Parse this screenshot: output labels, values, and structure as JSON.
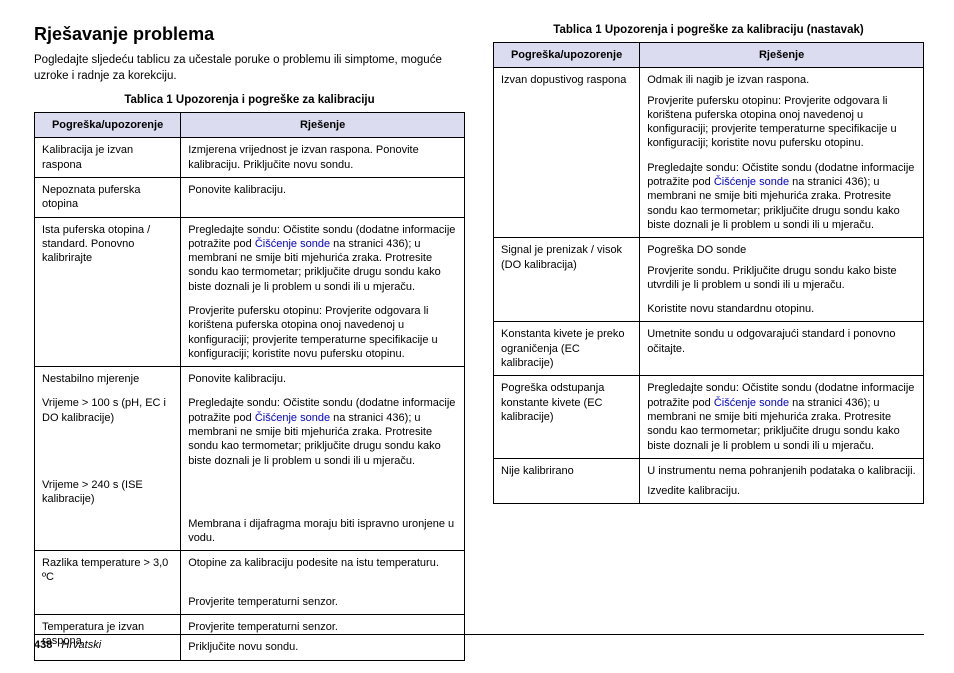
{
  "heading": "Rješavanje problema",
  "intro": "Pogledajte sljedeću tablicu za učestale poruke o problemu ili simptome, moguće uzroke i radnje za korekciju.",
  "table1": {
    "caption": "Tablica 1  Upozorenja i pogreške za kalibraciju",
    "headers": {
      "err": "Pogreška/upozorenje",
      "sol": "Rješenje"
    },
    "rows": [
      {
        "err": [
          "Kalibracija je izvan raspona"
        ],
        "sol": [
          "Izmjerena vrijednost je izvan raspona. Ponovite kalibraciju. Priključite novu sondu."
        ]
      },
      {
        "err": [
          "Nepoznata puferska otopina"
        ],
        "sol": [
          "Ponovite kalibraciju."
        ],
        "top": true
      },
      {
        "err": [
          "Ista puferska otopina / standard. Ponovno kalibrirajte"
        ],
        "sol": [
          "Pregledajte sondu: Očistite sondu (dodatne informacije potražite pod ",
          {
            "link": "Čišćenje sonde"
          },
          " na stranici 436); u membrani ne smije biti mjehurića zraka. Protresite sondu kao termometar; priključite drugu sondu kako biste doznali je li problem u sondi ili u mjeraču."
        ],
        "top": true
      },
      {
        "err": [],
        "sol": [
          "Provjerite pufersku otopinu: Provjerite odgovara li korištena puferska otopina onoj navedenoj u konfiguraciji; provjerite temperaturne specifikacije u konfiguraciji; koristite novu pufersku otopinu."
        ]
      },
      {
        "err": [
          "Nestabilno mjerenje"
        ],
        "sol": [
          "Ponovite kalibraciju."
        ],
        "top": true
      },
      {
        "err": [
          "Vrijeme > 100 s (pH, EC i DO kalibracije)"
        ],
        "sol": [
          "Pregledajte sondu: Očistite sondu (dodatne informacije potražite pod ",
          {
            "link": "Čišćenje sonde"
          },
          " na stranici 436); u membrani ne smije biti mjehurića zraka. Protresite sondu kao termometar; priključite drugu sondu kako biste doznali je li problem u sondi ili u mjeraču."
        ]
      },
      {
        "err": [
          "Vrijeme > 240 s (ISE kalibracije)"
        ],
        "sol": []
      },
      {
        "err": [],
        "sol": [
          "Membrana i dijafragma moraju biti ispravno uronjene u vodu."
        ]
      },
      {
        "err": [
          "Razlika temperature > 3,0 ºC"
        ],
        "sol": [
          "Otopine za kalibraciju podesite na istu temperaturu."
        ],
        "top": true
      },
      {
        "err": [],
        "sol": [
          "Provjerite temperaturni senzor."
        ]
      },
      {
        "err": [
          "Temperatura je izvan raspona"
        ],
        "sol": [
          "Provjerite temperaturni senzor.",
          "Priključite novu sondu."
        ],
        "top": true,
        "last": true
      }
    ]
  },
  "table2": {
    "caption": "Tablica 1  Upozorenja i pogreške za kalibraciju (nastavak)",
    "headers": {
      "err": "Pogreška/upozorenje",
      "sol": "Rješenje"
    },
    "rows": [
      {
        "err": [
          "Izvan dopustivog raspona"
        ],
        "sol": [
          "Odmak ili nagib je izvan raspona.",
          "Provjerite pufersku otopinu: Provjerite odgovara li korištena puferska otopina onoj navedenoj u konfiguraciji; provjerite temperaturne specifikacije u konfiguraciji; koristite novu pufersku otopinu."
        ]
      },
      {
        "err": [],
        "sol": [
          "Pregledajte sondu: Očistite sondu (dodatne informacije potražite pod ",
          {
            "link": "Čišćenje sonde"
          },
          " na stranici 436); u membrani ne smije biti mjehurića zraka. Protresite sondu kao termometar; priključite drugu sondu kako biste doznali je li problem u sondi ili u mjeraču."
        ]
      },
      {
        "err": [
          "Signal je prenizak / visok (DO kalibracija)"
        ],
        "sol": [
          "Pogreška DO sonde",
          "Provjerite sondu. Priključite drugu sondu kako biste utvrdili je li problem u sondi ili u mjeraču."
        ],
        "top": true
      },
      {
        "err": [],
        "sol": [
          "Koristite novu standardnu otopinu."
        ]
      },
      {
        "err": [
          "Konstanta kivete je preko ograničenja (EC kalibracije)"
        ],
        "sol": [
          "Umetnite sondu u odgovarajući standard i ponovno očitajte."
        ],
        "top": true
      },
      {
        "err": [
          "Pogreška odstupanja konstante kivete (EC kalibracije)"
        ],
        "sol": [
          "Pregledajte sondu: Očistite sondu (dodatne informacije potražite pod ",
          {
            "link": "Čišćenje sonde"
          },
          " na stranici 436); u membrani ne smije biti mjehurića zraka. Protresite sondu kao termometar; priključite drugu sondu kako biste doznali je li problem u sondi ili u mjeraču."
        ],
        "top": true
      },
      {
        "err": [
          "Nije kalibrirano"
        ],
        "sol": [
          "U instrumentu nema pohranjenih podataka o kalibraciji.",
          "Izvedite kalibraciju."
        ],
        "top": true,
        "last": true
      }
    ]
  },
  "footer": {
    "page": "438",
    "lang": "Hrvatski"
  },
  "colors": {
    "headerBg": "#dcdcf0",
    "link": "#0000cc"
  }
}
